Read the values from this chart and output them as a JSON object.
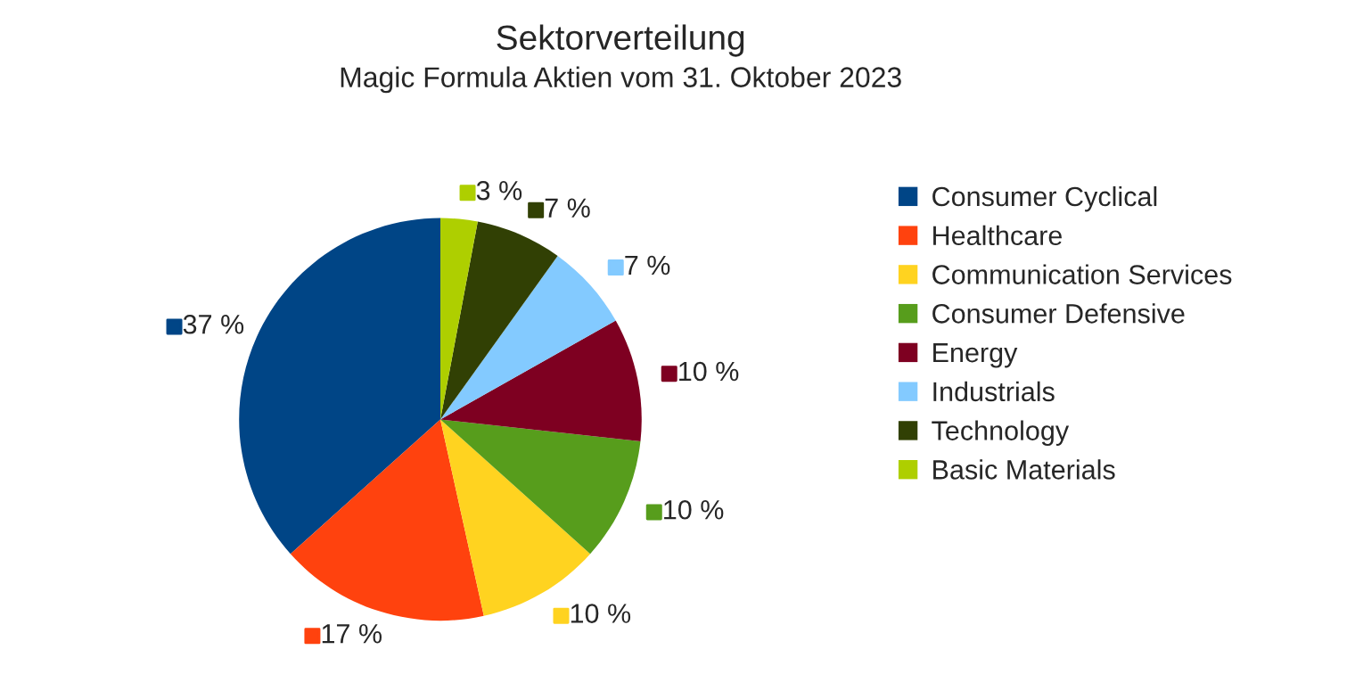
{
  "chart_data": {
    "type": "pie",
    "title": "Sektorverteilung",
    "subtitle": "Magic Formula Aktien vom 31. Oktober 2023",
    "categories": [
      "Consumer Cyclical",
      "Healthcare",
      "Communication Services",
      "Consumer Defensive",
      "Energy",
      "Industrials",
      "Technology",
      "Basic Materials"
    ],
    "values": [
      37,
      17,
      10,
      10,
      10,
      7,
      7,
      3
    ],
    "value_labels": [
      "37 %",
      "17 %",
      "10 %",
      "10 %",
      "10 %",
      "7 %",
      "7 %",
      "3 %"
    ],
    "colors": [
      "#004586",
      "#ff420e",
      "#ffd320",
      "#579d1c",
      "#7e0021",
      "#83caff",
      "#314004",
      "#aecf00"
    ],
    "legend": "right"
  }
}
